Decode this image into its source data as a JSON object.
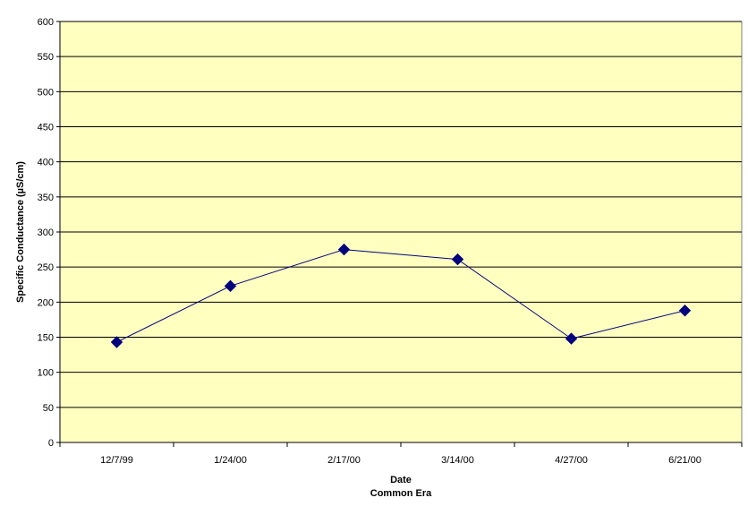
{
  "chart_data": {
    "type": "line",
    "title": "",
    "xlabel": "Date",
    "xlabel_sub": "Common Era",
    "ylabel": "Specific Conductance (µS/cm)",
    "ylim": [
      0,
      600
    ],
    "y_ticks": [
      0,
      50,
      100,
      150,
      200,
      250,
      300,
      350,
      400,
      450,
      500,
      550,
      600
    ],
    "categories": [
      "12/7/99",
      "1/24/00",
      "2/17/00",
      "3/14/00",
      "4/27/00",
      "6/21/00"
    ],
    "series": [
      {
        "values": [
          143,
          223,
          275,
          261,
          148,
          188
        ],
        "color": "#00007f",
        "marker": "diamond"
      }
    ],
    "grid": "horizontal",
    "legend": "none",
    "plot_background": "#ffffc0"
  }
}
